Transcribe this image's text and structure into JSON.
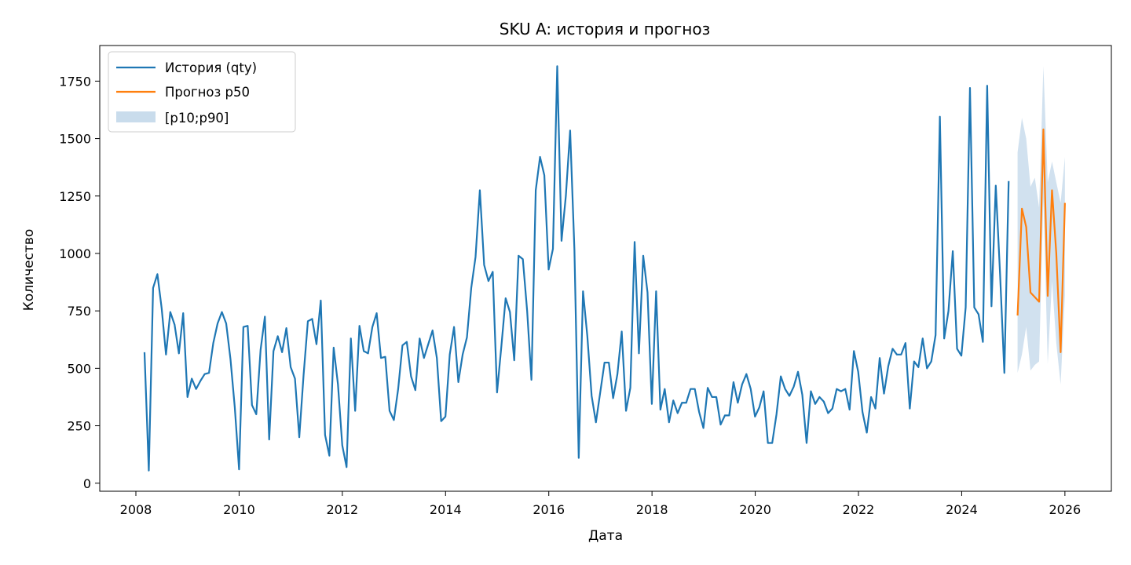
{
  "colors": {
    "history": "#1f77b4",
    "forecast": "#ff7f0e",
    "band": "#c9dcec"
  },
  "chart_data": {
    "type": "line",
    "title": "SKU A: история и прогноз",
    "xlabel": "Дата",
    "ylabel": "Количество",
    "xlim": [
      2007.3,
      2026.9
    ],
    "ylim": [
      -35,
      1905
    ],
    "x_ticks": [
      2008,
      2010,
      2012,
      2014,
      2016,
      2018,
      2020,
      2022,
      2024,
      2026
    ],
    "x_tick_labels": [
      "2008",
      "2010",
      "2012",
      "2014",
      "2016",
      "2018",
      "2020",
      "2022",
      "2024",
      "2026"
    ],
    "y_ticks": [
      0,
      250,
      500,
      750,
      1000,
      1250,
      1500,
      1750
    ],
    "y_tick_labels": [
      "0",
      "250",
      "500",
      "750",
      "1000",
      "1250",
      "1500",
      "1750"
    ],
    "grid": false,
    "legend_position": "top-left",
    "legend": [
      "История (qty)",
      "Прогноз p50",
      "[p10;p90]"
    ],
    "series": [
      {
        "name": "История (qty)",
        "start": 2008.167,
        "step": 0.0833,
        "values": [
          570,
          55,
          850,
          910,
          760,
          560,
          745,
          690,
          565,
          740,
          375,
          455,
          410,
          445,
          475,
          480,
          610,
          695,
          745,
          695,
          540,
          330,
          60,
          680,
          685,
          340,
          300,
          580,
          725,
          190,
          575,
          640,
          570,
          675,
          505,
          455,
          200,
          470,
          705,
          715,
          605,
          795,
          210,
          120,
          590,
          430,
          165,
          70,
          630,
          315,
          685,
          575,
          565,
          680,
          740,
          545,
          550,
          315,
          275,
          410,
          600,
          615,
          465,
          405,
          630,
          545,
          605,
          665,
          545,
          270,
          290,
          560,
          680,
          440,
          560,
          635,
          850,
          985,
          1275,
          950,
          880,
          920,
          395,
          595,
          805,
          745,
          535,
          990,
          975,
          750,
          450,
          1275,
          1420,
          1340,
          930,
          1020,
          1815,
          1055,
          1250,
          1535,
          1015,
          110,
          835,
          640,
          380,
          265,
          395,
          525,
          525,
          370,
          475,
          660,
          315,
          415,
          1050,
          565,
          990,
          830,
          345,
          835,
          320,
          410,
          265,
          360,
          305,
          350,
          350,
          410,
          410,
          310,
          240,
          415,
          375,
          375,
          255,
          295,
          295,
          440,
          350,
          430,
          475,
          410,
          290,
          330,
          400,
          175,
          175,
          300,
          465,
          410,
          380,
          420,
          485,
          385,
          175,
          400,
          345,
          375,
          355,
          305,
          325,
          410,
          400,
          410,
          320,
          575,
          485,
          310,
          220,
          375,
          325,
          545,
          390,
          510,
          585,
          560,
          560,
          610,
          325,
          530,
          505,
          630,
          500,
          530,
          645,
          1595,
          630,
          750,
          1010,
          585,
          555,
          765,
          1720,
          765,
          735,
          615,
          1730,
          770,
          1295,
          910,
          480,
          1315
        ]
      },
      {
        "name": "Прогноз p50",
        "x": [
          2025.083,
          2025.167,
          2025.25,
          2025.333,
          2025.417,
          2025.5,
          2025.583,
          2025.667,
          2025.75,
          2025.833,
          2025.917,
          2026.0
        ],
        "values": [
          730,
          1195,
          1115,
          830,
          810,
          790,
          1540,
          815,
          1275,
          1000,
          570,
          1220
        ]
      }
    ],
    "band": {
      "name": "[p10;p90]",
      "x": [
        2025.083,
        2025.167,
        2025.25,
        2025.333,
        2025.417,
        2025.5,
        2025.583,
        2025.667,
        2025.75,
        2025.833,
        2025.917,
        2026.0
      ],
      "lower": [
        480,
        560,
        680,
        490,
        515,
        530,
        1240,
        520,
        880,
        610,
        430,
        820
      ],
      "upper": [
        1440,
        1590,
        1500,
        1290,
        1330,
        1200,
        1815,
        1310,
        1400,
        1310,
        1220,
        1420
      ]
    }
  }
}
